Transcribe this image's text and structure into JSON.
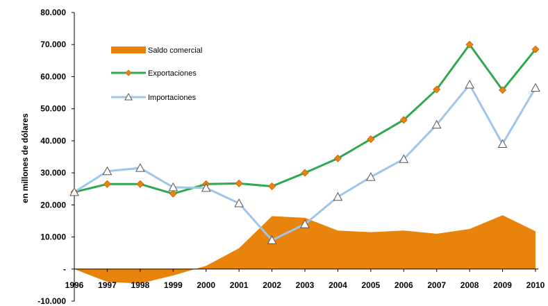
{
  "chart_data": {
    "type": "line",
    "ylabel": "en millones de dólares",
    "xlabel": "",
    "ylim": [
      -10000,
      80000
    ],
    "y_ticks": [
      {
        "value": 80000,
        "label": "80.000"
      },
      {
        "value": 70000,
        "label": "70.000"
      },
      {
        "value": 60000,
        "label": "60.000"
      },
      {
        "value": 50000,
        "label": "50.000"
      },
      {
        "value": 40000,
        "label": "40.000"
      },
      {
        "value": 30000,
        "label": "30.000"
      },
      {
        "value": 20000,
        "label": "20.000"
      },
      {
        "value": 10000,
        "label": "10.000"
      },
      {
        "value": 0,
        "label": "-"
      },
      {
        "value": -10000,
        "label": "-10.000"
      }
    ],
    "x": [
      "1996",
      "1997",
      "1998",
      "1999",
      "2000",
      "2001",
      "2002",
      "2003",
      "2004",
      "2005",
      "2006",
      "2007",
      "2008",
      "2009",
      "2010"
    ],
    "grid": false,
    "legend_position": "top-left",
    "series": [
      {
        "name": "Saldo comercial",
        "kind": "area",
        "color": "#e8840c",
        "values": [
          0,
          -4000,
          -4500,
          -2000,
          1000,
          6500,
          16500,
          16000,
          12000,
          11500,
          12000,
          11000,
          12500,
          16800,
          11800
        ]
      },
      {
        "name": "Exportaciones",
        "kind": "line",
        "color": "#2fa84f",
        "marker": "diamond",
        "marker_color": "#e8840c",
        "values": [
          24000,
          26500,
          26500,
          23500,
          26500,
          26700,
          25800,
          30000,
          34500,
          40500,
          46500,
          56000,
          70000,
          55800,
          68500
        ]
      },
      {
        "name": "Importaciones",
        "kind": "line",
        "color": "#9ec5ea",
        "marker": "triangle",
        "marker_color": "#ffffff",
        "values": [
          24000,
          30500,
          31500,
          25500,
          25300,
          20500,
          9000,
          14000,
          22500,
          28700,
          34300,
          45000,
          57500,
          39000,
          56500
        ]
      }
    ]
  }
}
